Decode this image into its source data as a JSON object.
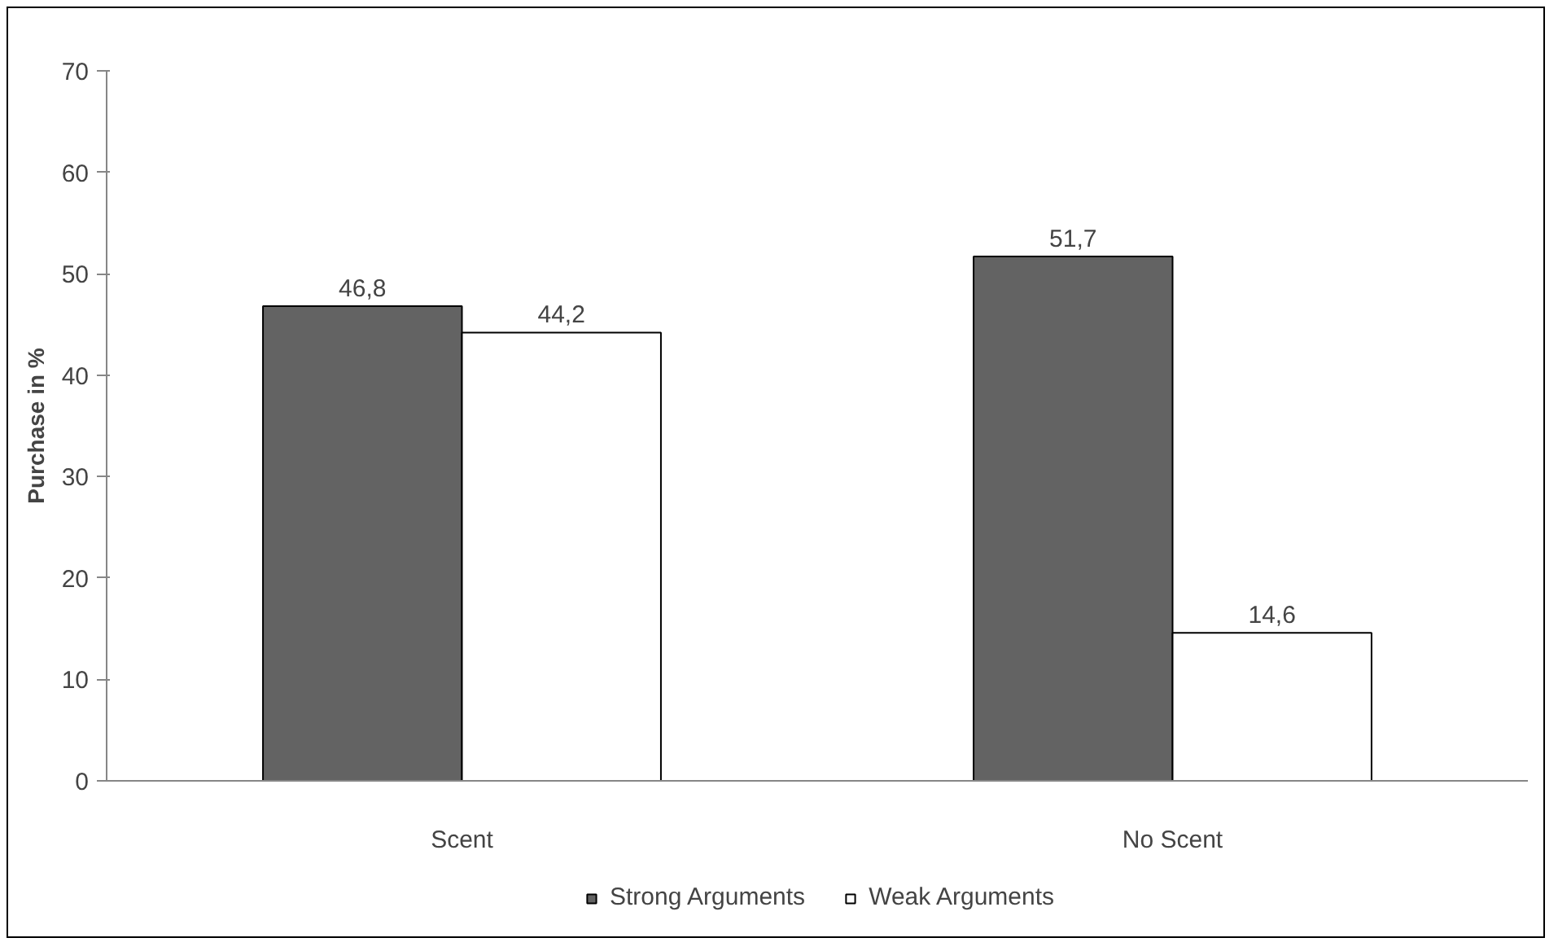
{
  "chart_data": {
    "type": "bar",
    "ylabel": "Purchase in %",
    "categories": [
      "Scent",
      "No Scent"
    ],
    "series": [
      {
        "name": "Strong Arguments",
        "color": "#636363",
        "values": [
          46.8,
          51.7
        ],
        "value_labels": [
          "46,8",
          "51,7"
        ]
      },
      {
        "name": "Weak Arguments",
        "color": "#ffffff",
        "values": [
          44.2,
          14.6
        ],
        "value_labels": [
          "44,2",
          "14,6"
        ]
      }
    ],
    "ylim": [
      0,
      70
    ],
    "yticks": [
      0,
      10,
      20,
      30,
      40,
      50,
      60,
      70
    ],
    "grid": false,
    "legend": "bottom"
  }
}
